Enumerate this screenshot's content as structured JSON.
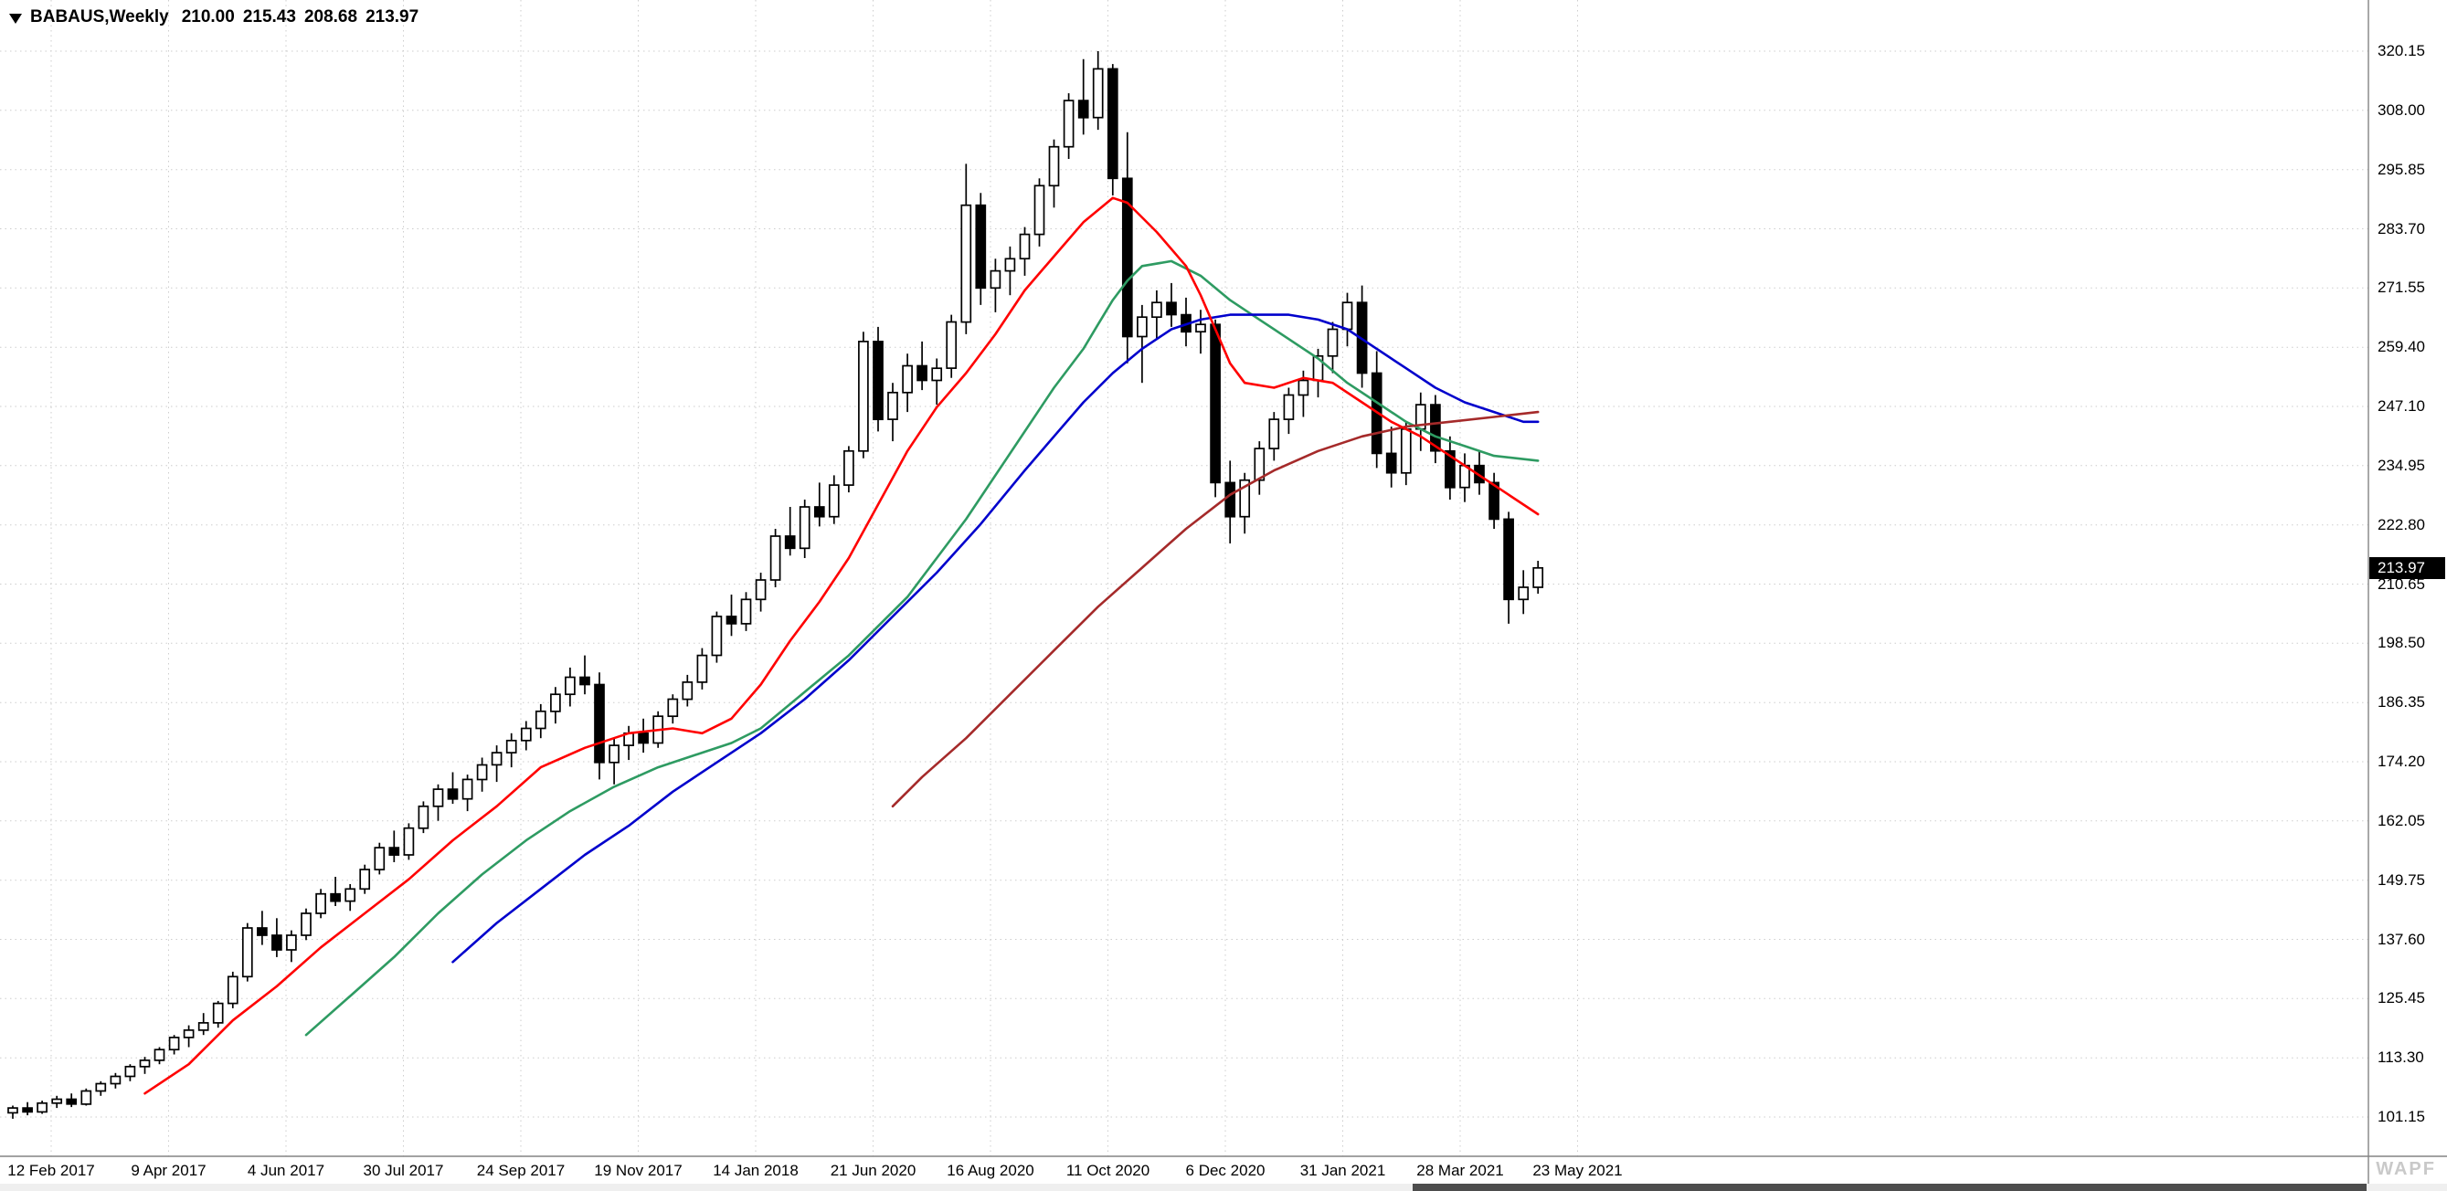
{
  "header": {
    "symbol_timeframe": "BABAUS,Weekly",
    "open": "210.00",
    "high": "215.43",
    "low": "208.68",
    "close": "213.97"
  },
  "price_scale": {
    "current_label": "213.97"
  },
  "watermark": "WAPF",
  "colors": {
    "background": "#ffffff",
    "grid": "#cdcdcd",
    "axis_border": "#848484",
    "candle_up_fill": "#ffffff",
    "candle_down_fill": "#000000",
    "candle_outline": "#000000",
    "ma_red": "#ff0000",
    "ma_green": "#2e9b62",
    "ma_blue": "#0000cc",
    "ma_maroon": "#a52a2a",
    "tag_bg": "#000000",
    "tag_text": "#ffffff",
    "scroll_thumb": "#4d4d4d"
  },
  "chart_data": {
    "type": "candlestick",
    "title": "BABAUS Weekly candlestick chart with four moving averages",
    "symbol": "BABAUS",
    "timeframe": "Weekly",
    "current_price": 213.97,
    "grid": true,
    "legend_position": "none",
    "y_axis": {
      "ticks": [
        "320.15",
        "308.00",
        "295.85",
        "283.70",
        "271.55",
        "259.40",
        "247.10",
        "234.95",
        "222.80",
        "210.65",
        "198.50",
        "186.35",
        "174.20",
        "162.05",
        "149.75",
        "137.60",
        "125.45",
        "113.30",
        "101.15"
      ],
      "min": 95.0,
      "max": 326.0
    },
    "x_axis": {
      "ticks": [
        "12 Feb 2017",
        "9 Apr 2017",
        "4 Jun 2017",
        "30 Jul 2017",
        "24 Sep 2017",
        "19 Nov 2017",
        "14 Jan 2018",
        "21 Jun 2020",
        "16 Aug 2020",
        "11 Oct 2020",
        "6 Dec 2020",
        "31 Jan 2021",
        "28 Mar 2021",
        "23 May 2021"
      ]
    },
    "candles": [
      [
        102.0,
        103.5,
        100.8,
        103.0
      ],
      [
        103.0,
        104.2,
        101.5,
        102.2
      ],
      [
        102.2,
        104.5,
        101.8,
        104.0
      ],
      [
        104.0,
        105.5,
        103.0,
        104.8
      ],
      [
        104.8,
        106.0,
        103.2,
        103.8
      ],
      [
        103.8,
        107.0,
        103.5,
        106.5
      ],
      [
        106.5,
        108.5,
        105.5,
        108.0
      ],
      [
        108.0,
        110.2,
        107.0,
        109.5
      ],
      [
        109.5,
        112.0,
        108.5,
        111.5
      ],
      [
        111.5,
        113.5,
        110.0,
        112.8
      ],
      [
        112.8,
        115.5,
        112.0,
        115.0
      ],
      [
        115.0,
        118.0,
        114.0,
        117.5
      ],
      [
        117.5,
        120.0,
        115.5,
        119.0
      ],
      [
        119.0,
        122.5,
        118.0,
        120.5
      ],
      [
        120.5,
        125.0,
        119.5,
        124.5
      ],
      [
        124.5,
        131.0,
        123.5,
        130.0
      ],
      [
        130.0,
        141.0,
        129.0,
        140.0
      ],
      [
        140.0,
        143.5,
        136.5,
        138.5
      ],
      [
        138.5,
        142.0,
        134.0,
        135.5
      ],
      [
        135.5,
        139.5,
        133.0,
        138.5
      ],
      [
        138.5,
        144.0,
        137.5,
        143.0
      ],
      [
        143.0,
        148.0,
        142.0,
        147.0
      ],
      [
        147.0,
        150.5,
        144.5,
        145.5
      ],
      [
        145.5,
        149.0,
        143.5,
        148.0
      ],
      [
        148.0,
        153.0,
        147.0,
        152.0
      ],
      [
        152.0,
        157.5,
        151.0,
        156.5
      ],
      [
        156.5,
        160.0,
        153.5,
        155.0
      ],
      [
        155.0,
        161.5,
        154.0,
        160.5
      ],
      [
        160.5,
        166.0,
        159.5,
        165.0
      ],
      [
        165.0,
        169.5,
        162.0,
        168.5
      ],
      [
        168.5,
        172.0,
        165.5,
        166.5
      ],
      [
        166.5,
        171.5,
        164.0,
        170.5
      ],
      [
        170.5,
        175.0,
        168.0,
        173.5
      ],
      [
        173.5,
        177.5,
        170.0,
        176.0
      ],
      [
        176.0,
        180.0,
        173.0,
        178.5
      ],
      [
        178.5,
        182.5,
        176.5,
        181.0
      ],
      [
        181.0,
        186.0,
        179.0,
        184.5
      ],
      [
        184.5,
        189.5,
        182.0,
        188.0
      ],
      [
        188.0,
        193.5,
        185.5,
        191.5
      ],
      [
        191.5,
        196.0,
        188.0,
        190.0
      ],
      [
        190.0,
        192.5,
        170.5,
        174.0
      ],
      [
        174.0,
        179.0,
        169.5,
        177.5
      ],
      [
        177.5,
        181.5,
        174.5,
        180.0
      ],
      [
        180.0,
        183.0,
        176.0,
        178.0
      ],
      [
        178.0,
        184.5,
        177.0,
        183.5
      ],
      [
        183.5,
        188.0,
        182.0,
        187.0
      ],
      [
        187.0,
        192.0,
        185.5,
        190.5
      ],
      [
        190.5,
        197.5,
        189.0,
        196.0
      ],
      [
        196.0,
        205.0,
        194.5,
        204.0
      ],
      [
        204.0,
        208.5,
        200.0,
        202.5
      ],
      [
        202.5,
        209.0,
        201.0,
        207.5
      ],
      [
        207.5,
        213.0,
        205.0,
        211.5
      ],
      [
        211.5,
        222.0,
        210.0,
        220.5
      ],
      [
        220.5,
        226.5,
        216.5,
        218.0
      ],
      [
        218.0,
        228.0,
        216.0,
        226.5
      ],
      [
        226.5,
        231.5,
        222.5,
        224.5
      ],
      [
        224.5,
        233.0,
        223.0,
        231.0
      ],
      [
        231.0,
        239.0,
        229.5,
        238.0
      ],
      [
        238.0,
        262.5,
        236.5,
        260.5
      ],
      [
        260.5,
        263.5,
        242.0,
        244.5
      ],
      [
        244.5,
        252.0,
        240.0,
        250.0
      ],
      [
        250.0,
        258.0,
        246.0,
        255.5
      ],
      [
        255.5,
        260.5,
        250.5,
        252.5
      ],
      [
        252.5,
        257.0,
        247.5,
        255.0
      ],
      [
        255.0,
        266.0,
        253.0,
        264.5
      ],
      [
        264.5,
        297.0,
        262.0,
        288.5
      ],
      [
        288.5,
        291.0,
        268.0,
        271.5
      ],
      [
        271.5,
        277.5,
        266.5,
        275.0
      ],
      [
        275.0,
        280.0,
        270.0,
        277.5
      ],
      [
        277.5,
        284.0,
        274.0,
        282.5
      ],
      [
        282.5,
        294.0,
        280.0,
        292.5
      ],
      [
        292.5,
        302.0,
        288.0,
        300.5
      ],
      [
        300.5,
        311.5,
        298.0,
        310.0
      ],
      [
        310.0,
        318.5,
        303.0,
        306.5
      ],
      [
        306.5,
        320.15,
        304.0,
        316.5
      ],
      [
        316.5,
        317.5,
        290.5,
        294.0
      ],
      [
        294.0,
        303.5,
        256.0,
        261.5
      ],
      [
        261.5,
        268.0,
        252.0,
        265.5
      ],
      [
        265.5,
        271.0,
        261.0,
        268.5
      ],
      [
        268.5,
        272.5,
        263.5,
        266.0
      ],
      [
        266.0,
        269.5,
        259.5,
        262.5
      ],
      [
        262.5,
        267.0,
        258.0,
        264.0
      ],
      [
        264.0,
        265.0,
        228.5,
        231.5
      ],
      [
        231.5,
        236.0,
        219.0,
        224.5
      ],
      [
        224.5,
        233.5,
        221.0,
        232.0
      ],
      [
        232.0,
        240.0,
        229.0,
        238.5
      ],
      [
        238.5,
        246.0,
        236.0,
        244.5
      ],
      [
        244.5,
        251.0,
        241.5,
        249.5
      ],
      [
        249.5,
        254.5,
        245.0,
        252.5
      ],
      [
        252.5,
        259.0,
        249.0,
        257.5
      ],
      [
        257.5,
        264.5,
        254.0,
        263.0
      ],
      [
        263.0,
        270.5,
        259.5,
        268.5
      ],
      [
        268.5,
        272.0,
        251.0,
        254.0
      ],
      [
        254.0,
        258.5,
        234.5,
        237.5
      ],
      [
        237.5,
        243.0,
        230.5,
        233.5
      ],
      [
        233.5,
        244.0,
        231.0,
        242.5
      ],
      [
        242.5,
        250.0,
        238.0,
        247.5
      ],
      [
        247.5,
        249.5,
        235.5,
        238.0
      ],
      [
        238.0,
        241.0,
        228.0,
        230.5
      ],
      [
        230.5,
        237.5,
        227.5,
        235.0
      ],
      [
        235.0,
        238.0,
        229.0,
        231.5
      ],
      [
        231.5,
        233.5,
        222.0,
        224.0
      ],
      [
        224.0,
        225.5,
        202.5,
        207.5
      ],
      [
        207.5,
        213.5,
        204.5,
        210.0
      ],
      [
        210.0,
        215.43,
        208.68,
        213.97
      ]
    ],
    "moving_averages": [
      {
        "name": "ma-green",
        "color_key": "ma_green",
        "points": [
          [
            20,
            118
          ],
          [
            23,
            126
          ],
          [
            26,
            134
          ],
          [
            29,
            143
          ],
          [
            32,
            151
          ],
          [
            35,
            158
          ],
          [
            38,
            164
          ],
          [
            41,
            169
          ],
          [
            44,
            173
          ],
          [
            47,
            176
          ],
          [
            49,
            178
          ],
          [
            51,
            181
          ],
          [
            53,
            186
          ],
          [
            55,
            191
          ],
          [
            57,
            196
          ],
          [
            59,
            202
          ],
          [
            61,
            208
          ],
          [
            63,
            216
          ],
          [
            65,
            224
          ],
          [
            67,
            233
          ],
          [
            69,
            242
          ],
          [
            71,
            251
          ],
          [
            73,
            259
          ],
          [
            74,
            264
          ],
          [
            75,
            269
          ],
          [
            76,
            273
          ],
          [
            77,
            276
          ],
          [
            79,
            277
          ],
          [
            81,
            274
          ],
          [
            83,
            269
          ],
          [
            85,
            265
          ],
          [
            87,
            261
          ],
          [
            89,
            257
          ],
          [
            91,
            252
          ],
          [
            93,
            248
          ],
          [
            95,
            244
          ],
          [
            97,
            241
          ],
          [
            99,
            239
          ],
          [
            101,
            237
          ],
          [
            104,
            236
          ]
        ]
      },
      {
        "name": "ma-blue",
        "color_key": "ma_blue",
        "points": [
          [
            30,
            133
          ],
          [
            33,
            141
          ],
          [
            36,
            148
          ],
          [
            39,
            155
          ],
          [
            42,
            161
          ],
          [
            45,
            168
          ],
          [
            48,
            174
          ],
          [
            51,
            180
          ],
          [
            54,
            187
          ],
          [
            57,
            195
          ],
          [
            60,
            204
          ],
          [
            63,
            213
          ],
          [
            66,
            223
          ],
          [
            69,
            234
          ],
          [
            71,
            241
          ],
          [
            73,
            248
          ],
          [
            75,
            254
          ],
          [
            77,
            259
          ],
          [
            79,
            263
          ],
          [
            81,
            265
          ],
          [
            83,
            266
          ],
          [
            85,
            266
          ],
          [
            87,
            266
          ],
          [
            89,
            265
          ],
          [
            91,
            263
          ],
          [
            93,
            259
          ],
          [
            95,
            255
          ],
          [
            97,
            251
          ],
          [
            99,
            248
          ],
          [
            101,
            246
          ],
          [
            103,
            244
          ],
          [
            104,
            244
          ]
        ]
      },
      {
        "name": "ma-maroon",
        "color_key": "ma_maroon",
        "points": [
          [
            60,
            165
          ],
          [
            62,
            171
          ],
          [
            65,
            179
          ],
          [
            68,
            188
          ],
          [
            71,
            197
          ],
          [
            74,
            206
          ],
          [
            77,
            214
          ],
          [
            80,
            222
          ],
          [
            83,
            229
          ],
          [
            86,
            234
          ],
          [
            89,
            238
          ],
          [
            92,
            241
          ],
          [
            95,
            243
          ],
          [
            98,
            244
          ],
          [
            101,
            245
          ],
          [
            104,
            246
          ]
        ]
      },
      {
        "name": "ma-red",
        "color_key": "ma_red",
        "points": [
          [
            9,
            106
          ],
          [
            12,
            112
          ],
          [
            15,
            121
          ],
          [
            18,
            128
          ],
          [
            21,
            136
          ],
          [
            24,
            143
          ],
          [
            27,
            150
          ],
          [
            30,
            158
          ],
          [
            33,
            165
          ],
          [
            36,
            173
          ],
          [
            39,
            177
          ],
          [
            42,
            180
          ],
          [
            45,
            181
          ],
          [
            47,
            180
          ],
          [
            49,
            183
          ],
          [
            51,
            190
          ],
          [
            53,
            199
          ],
          [
            55,
            207
          ],
          [
            57,
            216
          ],
          [
            59,
            227
          ],
          [
            61,
            238
          ],
          [
            63,
            247
          ],
          [
            65,
            254
          ],
          [
            67,
            262
          ],
          [
            69,
            271
          ],
          [
            71,
            278
          ],
          [
            73,
            285
          ],
          [
            75,
            290
          ],
          [
            76,
            289
          ],
          [
            78,
            283
          ],
          [
            80,
            276
          ],
          [
            81,
            270
          ],
          [
            82,
            263
          ],
          [
            83,
            256
          ],
          [
            84,
            252
          ],
          [
            86,
            251
          ],
          [
            88,
            253
          ],
          [
            90,
            252
          ],
          [
            92,
            248
          ],
          [
            94,
            244
          ],
          [
            96,
            241
          ],
          [
            98,
            237
          ],
          [
            100,
            233
          ],
          [
            102,
            229
          ],
          [
            104,
            225
          ]
        ]
      }
    ]
  }
}
